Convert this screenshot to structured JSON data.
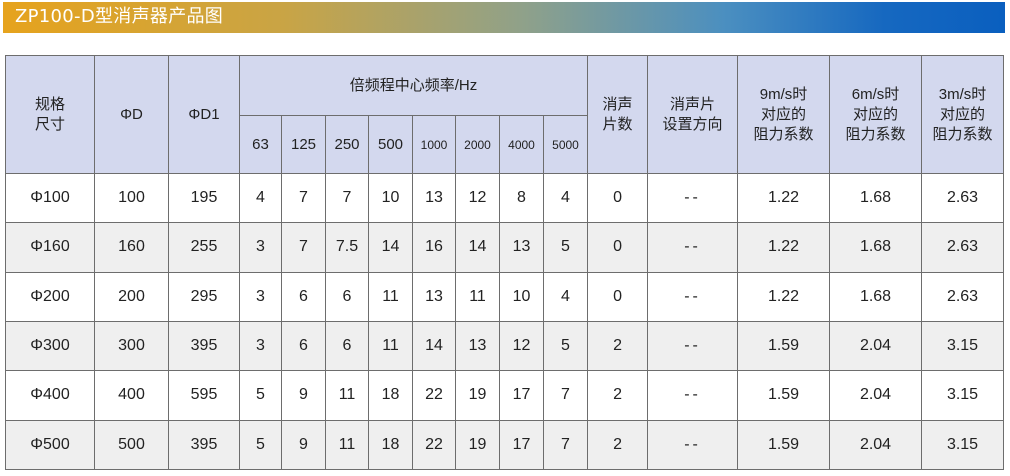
{
  "title": "ZP100-D型消声器产品图",
  "header": {
    "spec_line1": "规格",
    "spec_line2": "尺寸",
    "d": "ΦD",
    "d1": "ΦD1",
    "freq_group": "倍频程中心频率/Hz",
    "freqs": [
      "63",
      "125",
      "250",
      "500",
      "1000",
      "2000",
      "4000",
      "5000"
    ],
    "pieces_line1": "消声",
    "pieces_line2": "片数",
    "direction_line1": "消声片",
    "direction_line2": "设置方向",
    "r9_line1": "9m/s时",
    "r9_line2": "对应的",
    "r9_line3": "阻力系数",
    "r6_line1": "6m/s时",
    "r6_line2": "对应的",
    "r6_line3": "阻力系数",
    "r3_line1": "3m/s时",
    "r3_line2": "对应的",
    "r3_line3": "阻力系数"
  },
  "rows": [
    {
      "spec": "Φ100",
      "d": "100",
      "d1": "195",
      "f": [
        "4",
        "7",
        "7",
        "10",
        "13",
        "12",
        "8",
        "4"
      ],
      "pieces": "0",
      "direction": "--",
      "r9": "1.22",
      "r6": "1.68",
      "r3": "2.63"
    },
    {
      "spec": "Φ160",
      "d": "160",
      "d1": "255",
      "f": [
        "3",
        "7",
        "7.5",
        "14",
        "16",
        "14",
        "13",
        "5"
      ],
      "pieces": "0",
      "direction": "--",
      "r9": "1.22",
      "r6": "1.68",
      "r3": "2.63"
    },
    {
      "spec": "Φ200",
      "d": "200",
      "d1": "295",
      "f": [
        "3",
        "6",
        "6",
        "11",
        "13",
        "11",
        "10",
        "4"
      ],
      "pieces": "0",
      "direction": "--",
      "r9": "1.22",
      "r6": "1.68",
      "r3": "2.63"
    },
    {
      "spec": "Φ300",
      "d": "300",
      "d1": "395",
      "f": [
        "3",
        "6",
        "6",
        "11",
        "14",
        "13",
        "12",
        "5"
      ],
      "pieces": "2",
      "direction": "--",
      "r9": "1.59",
      "r6": "2.04",
      "r3": "3.15"
    },
    {
      "spec": "Φ400",
      "d": "400",
      "d1": "595",
      "f": [
        "5",
        "9",
        "11",
        "18",
        "22",
        "19",
        "17",
        "7"
      ],
      "pieces": "2",
      "direction": "--",
      "r9": "1.59",
      "r6": "2.04",
      "r3": "3.15"
    },
    {
      "spec": "Φ500",
      "d": "500",
      "d1": "395",
      "f": [
        "5",
        "9",
        "11",
        "18",
        "22",
        "19",
        "17",
        "7"
      ],
      "pieces": "2",
      "direction": "--",
      "r9": "1.59",
      "r6": "2.04",
      "r3": "3.15"
    }
  ],
  "colors": {
    "header_bg": "#d3d8ee",
    "row_alt_bg": "#efefef",
    "title_gradient_start": "#e6a31d",
    "title_gradient_end": "#0a5fbf"
  }
}
